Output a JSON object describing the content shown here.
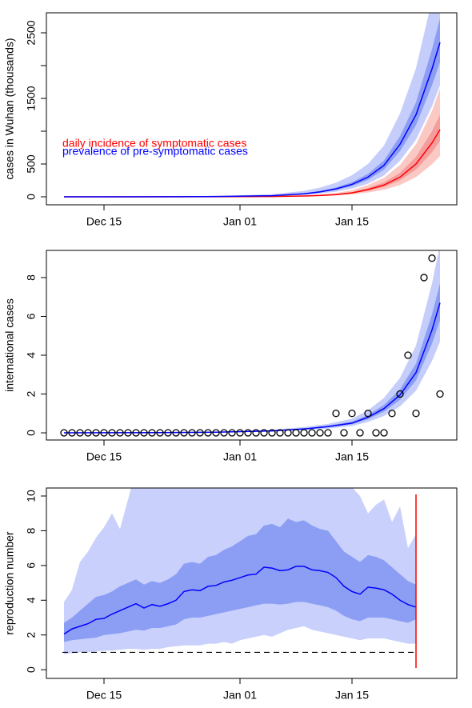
{
  "chart_data": [
    {
      "type": "line",
      "ylabel": "cases in Wuhan (thousands)",
      "xlim": [
        7.8,
        59.1
      ],
      "ylim": [
        -122,
        2805
      ],
      "xticks": [
        {
          "value": 15,
          "label": "Dec 15"
        },
        {
          "value": 32,
          "label": "Jan 01"
        },
        {
          "value": 46,
          "label": "Jan 15"
        }
      ],
      "yticks": [
        0,
        500,
        1500,
        2500
      ],
      "yticks_minor": [
        1000,
        2000
      ],
      "legend": "left",
      "series": [
        {
          "name": "daily incidence of symptomatic cases",
          "color": "#ff0000",
          "x": [
            10,
            15,
            22,
            29,
            36,
            40,
            42,
            44,
            46,
            48,
            50,
            52,
            54,
            56,
            57
          ],
          "values": [
            0,
            0,
            0,
            1,
            5,
            12,
            20,
            34,
            60,
            110,
            180,
            300,
            500,
            820,
            1024
          ],
          "bands": [
            {
              "color": "#fbc9c4",
              "lower": [
                0,
                0,
                0,
                0.5,
                2.5,
                7,
                12,
                20,
                36,
                65,
                108,
                180,
                300,
                495,
                620
              ],
              "upper": [
                0,
                0,
                0,
                2,
                10,
                22,
                35,
                58,
                100,
                180,
                290,
                485,
                800,
                1310,
                1650
              ]
            },
            {
              "color": "#f59c9c",
              "lower": [
                0,
                0,
                0,
                1,
                4,
                10,
                17,
                28,
                50,
                91,
                150,
                250,
                415,
                680,
                850
              ],
              "upper": [
                0,
                0,
                0,
                1,
                6,
                15,
                24,
                41,
                73,
                134,
                220,
                366,
                610,
                1000,
                1250
              ]
            }
          ]
        },
        {
          "name": "prevalence of pre-symptomatic cases",
          "color": "#0000ff",
          "x": [
            10,
            15,
            22,
            29,
            36,
            40,
            42,
            44,
            46,
            48,
            50,
            52,
            54,
            56,
            57
          ],
          "values": [
            0,
            0,
            1,
            4,
            17,
            45,
            75,
            120,
            190,
            300,
            480,
            800,
            1250,
            1950,
            2354
          ],
          "bands": [
            {
              "color": "#c5cdfb",
              "lower": [
                0,
                0,
                0.5,
                2,
                10,
                28,
                48,
                78,
                125,
                200,
                325,
                550,
                870,
                1380,
                1700
              ],
              "upper": [
                0,
                0,
                3,
                10,
                40,
                90,
                140,
                215,
                330,
                500,
                780,
                1270,
                1960,
                3000,
                3600
              ]
            },
            {
              "color": "#8c9ef4",
              "lower": [
                0,
                0,
                1,
                3,
                14,
                38,
                64,
                103,
                163,
                258,
                415,
                695,
                1090,
                1700,
                2050
              ],
              "upper": [
                0,
                0,
                1.5,
                5,
                21,
                55,
                90,
                142,
                222,
                350,
                555,
                925,
                1440,
                2250,
                2720
              ]
            }
          ]
        }
      ]
    },
    {
      "type": "line",
      "ylabel": "international cases",
      "xlim": [
        7.8,
        59.1
      ],
      "ylim": [
        -0.37,
        9.4
      ],
      "xticks": [
        {
          "value": 15,
          "label": "Dec 15"
        },
        {
          "value": 32,
          "label": "Jan 01"
        },
        {
          "value": 46,
          "label": "Jan 15"
        }
      ],
      "yticks": [
        0,
        2,
        4,
        6,
        8
      ],
      "series": [
        {
          "color": "#0000ff",
          "x": [
            10,
            22,
            29,
            36,
            40,
            43,
            46,
            48,
            50,
            52,
            54,
            56,
            57
          ],
          "values": [
            0,
            0.01,
            0.03,
            0.1,
            0.2,
            0.32,
            0.5,
            0.8,
            1.25,
            1.95,
            3.1,
            5.3,
            6.7
          ],
          "bands": [
            {
              "color": "#c5cdfb",
              "lower": [
                0,
                0,
                0.02,
                0.07,
                0.14,
                0.22,
                0.35,
                0.56,
                0.87,
                1.36,
                2.17,
                3.7,
                4.7
              ],
              "upper": [
                0,
                0.02,
                0.05,
                0.15,
                0.3,
                0.46,
                0.73,
                1.16,
                1.8,
                2.83,
                4.5,
                7.7,
                9.7
              ]
            },
            {
              "color": "#8c9ef4",
              "lower": [
                0,
                0.01,
                0.03,
                0.09,
                0.17,
                0.28,
                0.44,
                0.7,
                1.09,
                1.7,
                2.7,
                4.6,
                5.8
              ],
              "upper": [
                0,
                0.01,
                0.04,
                0.12,
                0.23,
                0.37,
                0.58,
                0.92,
                1.44,
                2.24,
                3.57,
                6.1,
                7.7
              ]
            }
          ]
        },
        {
          "color": "#000000",
          "marker": "circle",
          "x": [
            10,
            11,
            12,
            13,
            14,
            15,
            16,
            17,
            18,
            19,
            20,
            21,
            22,
            23,
            24,
            25,
            26,
            27,
            28,
            29,
            30,
            31,
            32,
            33,
            34,
            35,
            36,
            37,
            38,
            39,
            40,
            41,
            42,
            43,
            44,
            45,
            46,
            47,
            48,
            49,
            50,
            51,
            52,
            53,
            54,
            55,
            56,
            57
          ],
          "values": [
            0,
            0,
            0,
            0,
            0,
            0,
            0,
            0,
            0,
            0,
            0,
            0,
            0,
            0,
            0,
            0,
            0,
            0,
            0,
            0,
            0,
            0,
            0,
            0,
            0,
            0,
            0,
            0,
            0,
            0,
            0,
            0,
            0,
            0,
            1,
            0,
            1,
            0,
            1,
            0,
            0,
            1,
            2,
            4,
            1,
            8,
            9,
            2
          ]
        }
      ]
    },
    {
      "type": "line",
      "ylabel": "reproduction number",
      "xlim": [
        7.8,
        59.1
      ],
      "ylim": [
        -0.5,
        10.46
      ],
      "xticks": [
        {
          "value": 15,
          "label": "Dec 15"
        },
        {
          "value": 32,
          "label": "Jan 01"
        },
        {
          "value": 46,
          "label": "Jan 15"
        }
      ],
      "yticks": [
        0,
        2,
        4,
        6,
        8,
        10
      ],
      "hline": 1,
      "vline": 54,
      "vline_color": "#ff0000",
      "series": [
        {
          "color": "#0000ff",
          "x": [
            10,
            11,
            12,
            13,
            14,
            15,
            16,
            17,
            18,
            19,
            20,
            21,
            22,
            23,
            24,
            25,
            26,
            27,
            28,
            29,
            30,
            31,
            32,
            33,
            34,
            35,
            36,
            37,
            38,
            39,
            40,
            41,
            42,
            43,
            44,
            45,
            46,
            47,
            48,
            49,
            50,
            51,
            52,
            53,
            54
          ],
          "values": [
            2.05,
            2.35,
            2.5,
            2.65,
            2.9,
            2.95,
            3.2,
            3.4,
            3.6,
            3.8,
            3.55,
            3.75,
            3.65,
            3.8,
            4.0,
            4.5,
            4.6,
            4.55,
            4.8,
            4.85,
            5.05,
            5.15,
            5.3,
            5.45,
            5.5,
            5.9,
            5.85,
            5.7,
            5.75,
            5.95,
            5.95,
            5.75,
            5.7,
            5.6,
            5.3,
            4.8,
            4.5,
            4.35,
            4.75,
            4.7,
            4.6,
            4.35,
            4.0,
            3.75,
            3.6
          ],
          "bands": [
            {
              "color": "#c8d0fb",
              "lower": [
                0.9,
                0.95,
                1.0,
                1.0,
                1.05,
                1.1,
                1.1,
                1.15,
                1.2,
                1.2,
                1.15,
                1.2,
                1.2,
                1.3,
                1.35,
                1.4,
                1.4,
                1.4,
                1.5,
                1.5,
                1.6,
                1.5,
                1.7,
                1.8,
                1.9,
                2.0,
                1.9,
                2.1,
                2.3,
                2.4,
                2.5,
                2.3,
                2.2,
                2.1,
                2.0,
                1.9,
                1.8,
                1.7,
                1.8,
                1.8,
                1.8,
                1.7,
                1.6,
                1.5,
                1.5
              ],
              "upper": [
                3.9,
                4.6,
                6.2,
                6.8,
                7.6,
                8.2,
                9.0,
                8.1,
                9.8,
                11.5,
                11,
                11.5,
                12,
                12,
                12,
                12,
                12,
                12,
                12,
                12,
                12,
                12,
                12,
                12,
                12,
                12,
                12,
                12,
                12,
                12,
                12,
                12,
                12,
                12,
                12,
                11,
                10.5,
                10,
                9.0,
                9.5,
                9.8,
                8.5,
                9.4,
                7.0,
                7.8
              ]
            },
            {
              "color": "#8c9ef4",
              "lower": [
                1.6,
                1.7,
                1.75,
                1.8,
                1.85,
                2.0,
                2.05,
                2.1,
                2.2,
                2.3,
                2.25,
                2.4,
                2.4,
                2.5,
                2.6,
                2.9,
                3.0,
                3.0,
                3.1,
                3.2,
                3.3,
                3.4,
                3.5,
                3.6,
                3.7,
                3.8,
                3.8,
                3.75,
                3.8,
                3.9,
                3.9,
                3.8,
                3.7,
                3.6,
                3.4,
                3.1,
                2.9,
                2.8,
                3.0,
                3.0,
                3.0,
                2.9,
                2.8,
                2.7,
                2.9
              ],
              "upper": [
                2.7,
                3.0,
                3.4,
                3.8,
                4.2,
                4.3,
                4.5,
                4.8,
                5.0,
                5.2,
                4.9,
                5.1,
                5.0,
                5.2,
                5.5,
                6.1,
                6.2,
                6.1,
                6.5,
                6.6,
                6.9,
                7.1,
                7.4,
                7.7,
                7.8,
                8.3,
                8.4,
                8.2,
                8.7,
                8.5,
                8.6,
                8.3,
                8.1,
                8.0,
                7.4,
                6.8,
                6.5,
                6.2,
                6.6,
                6.5,
                6.3,
                5.9,
                5.5,
                5.1,
                4.9
              ]
            }
          ]
        }
      ]
    }
  ]
}
